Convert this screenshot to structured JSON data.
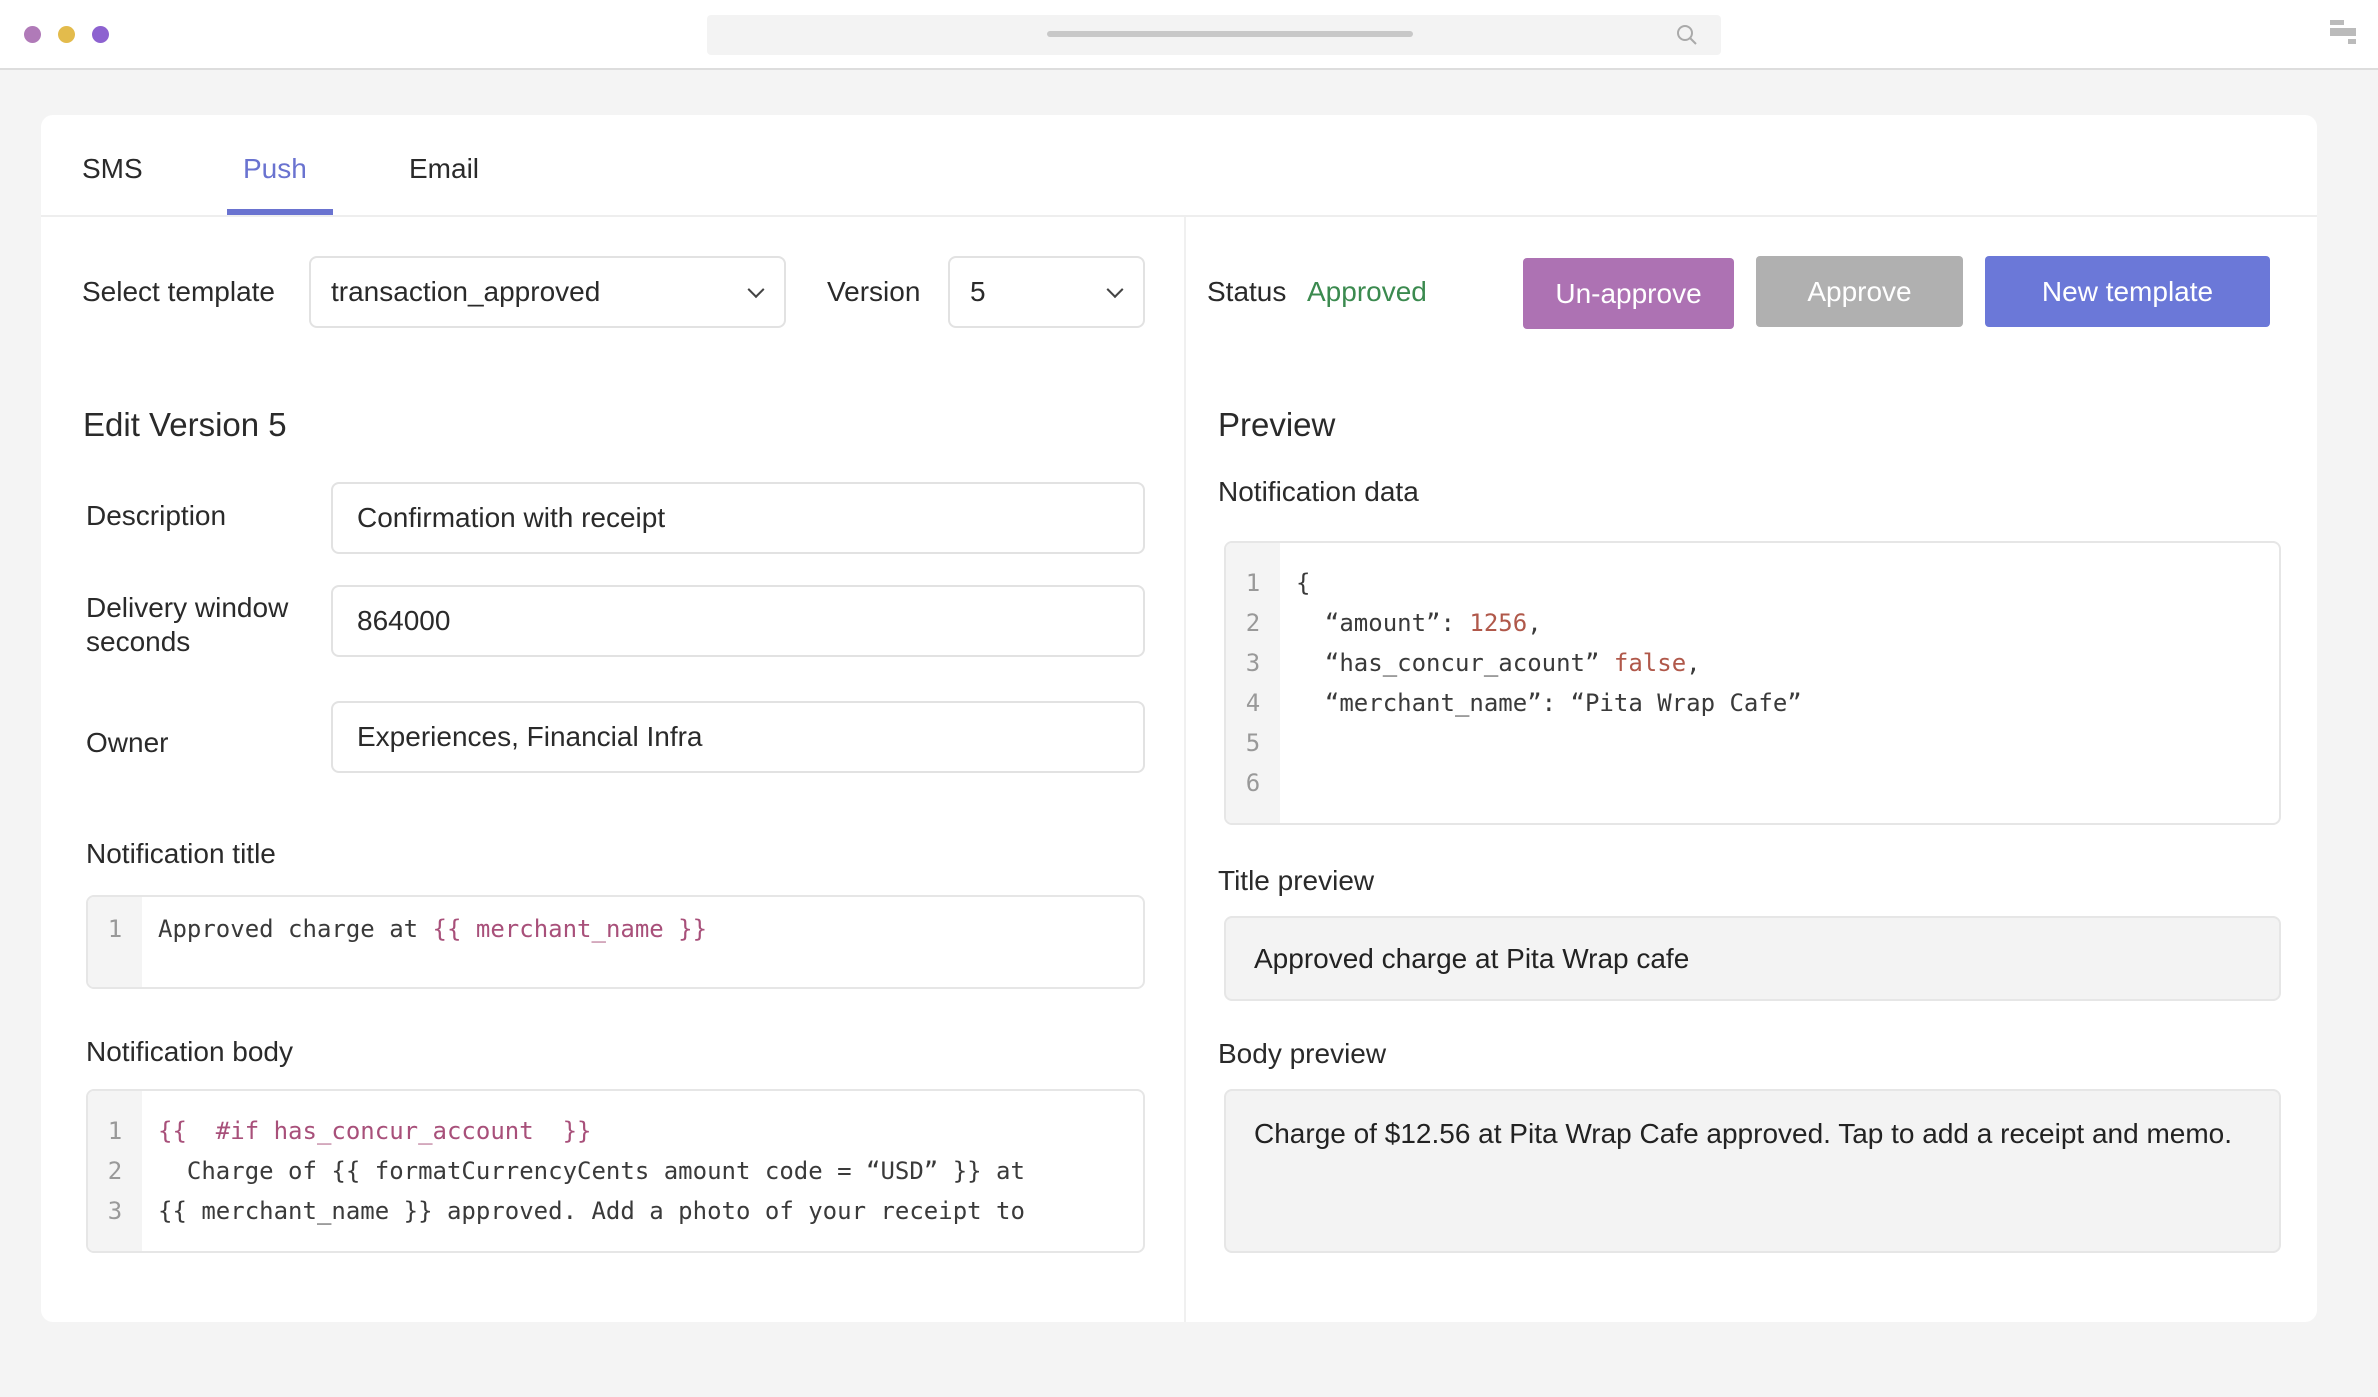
{
  "window": {
    "dot_colors": [
      "#b07ab8",
      "#e3bb4c",
      "#8d62d0"
    ]
  },
  "tabs": [
    {
      "label": "SMS"
    },
    {
      "label": "Push",
      "active": true
    },
    {
      "label": "Email"
    }
  ],
  "toolbar": {
    "select_template_label": "Select template",
    "template_value": "transaction_approved",
    "version_label": "Version",
    "version_value": "5",
    "status_label": "Status",
    "status_value": "Approved",
    "unapprove_label": "Un-approve",
    "approve_label": "Approve",
    "new_template_label": "New template"
  },
  "colors": {
    "accent": "#6a73d0",
    "unapprove": "#ad72b3",
    "approve": "#b0b0b0",
    "new_template": "#6b78d8",
    "status": "#3b8a4f",
    "template_var": "#a8507a",
    "json_value": "#b0584a"
  },
  "edit": {
    "title": "Edit Version 5",
    "description_label": "Description",
    "description_value": "Confirmation with receipt",
    "delivery_label_1": "Delivery window",
    "delivery_label_2": "seconds",
    "delivery_value": "864000",
    "owner_label": "Owner",
    "owner_value": "Experiences, Financial Infra",
    "notification_title_label": "Notification title",
    "notification_title_code": [
      [
        {
          "t": "Approved charge at "
        },
        {
          "t": "{{ merchant_name }}",
          "c": "var"
        }
      ]
    ],
    "notification_body_label": "Notification body",
    "notification_body_code": [
      [
        {
          "t": "{{  #if has_concur_account  }}",
          "c": "var"
        }
      ],
      [
        {
          "t": "  Charge of {{ formatCurrencyCents amount code = “USD” }} at"
        }
      ],
      [
        {
          "t": "{{ merchant_name }} approved. Add a photo of your receipt to"
        }
      ]
    ]
  },
  "preview": {
    "title": "Preview",
    "notification_data_label": "Notification data",
    "notification_data_code": [
      [
        {
          "t": "{"
        }
      ],
      [
        {
          "t": "  “amount”: "
        },
        {
          "t": "1256",
          "c": "val"
        },
        {
          "t": ","
        }
      ],
      [
        {
          "t": "  “has_concur_acount” "
        },
        {
          "t": "false",
          "c": "val"
        },
        {
          "t": ","
        }
      ],
      [
        {
          "t": "  “merchant_name”: “Pita Wrap Cafe”"
        }
      ],
      [],
      []
    ],
    "title_preview_label": "Title preview",
    "title_preview_value": "Approved charge at Pita Wrap cafe",
    "body_preview_label": "Body preview",
    "body_preview_value": "Charge of $12.56 at Pita Wrap Cafe approved. Tap to add a receipt and memo."
  }
}
